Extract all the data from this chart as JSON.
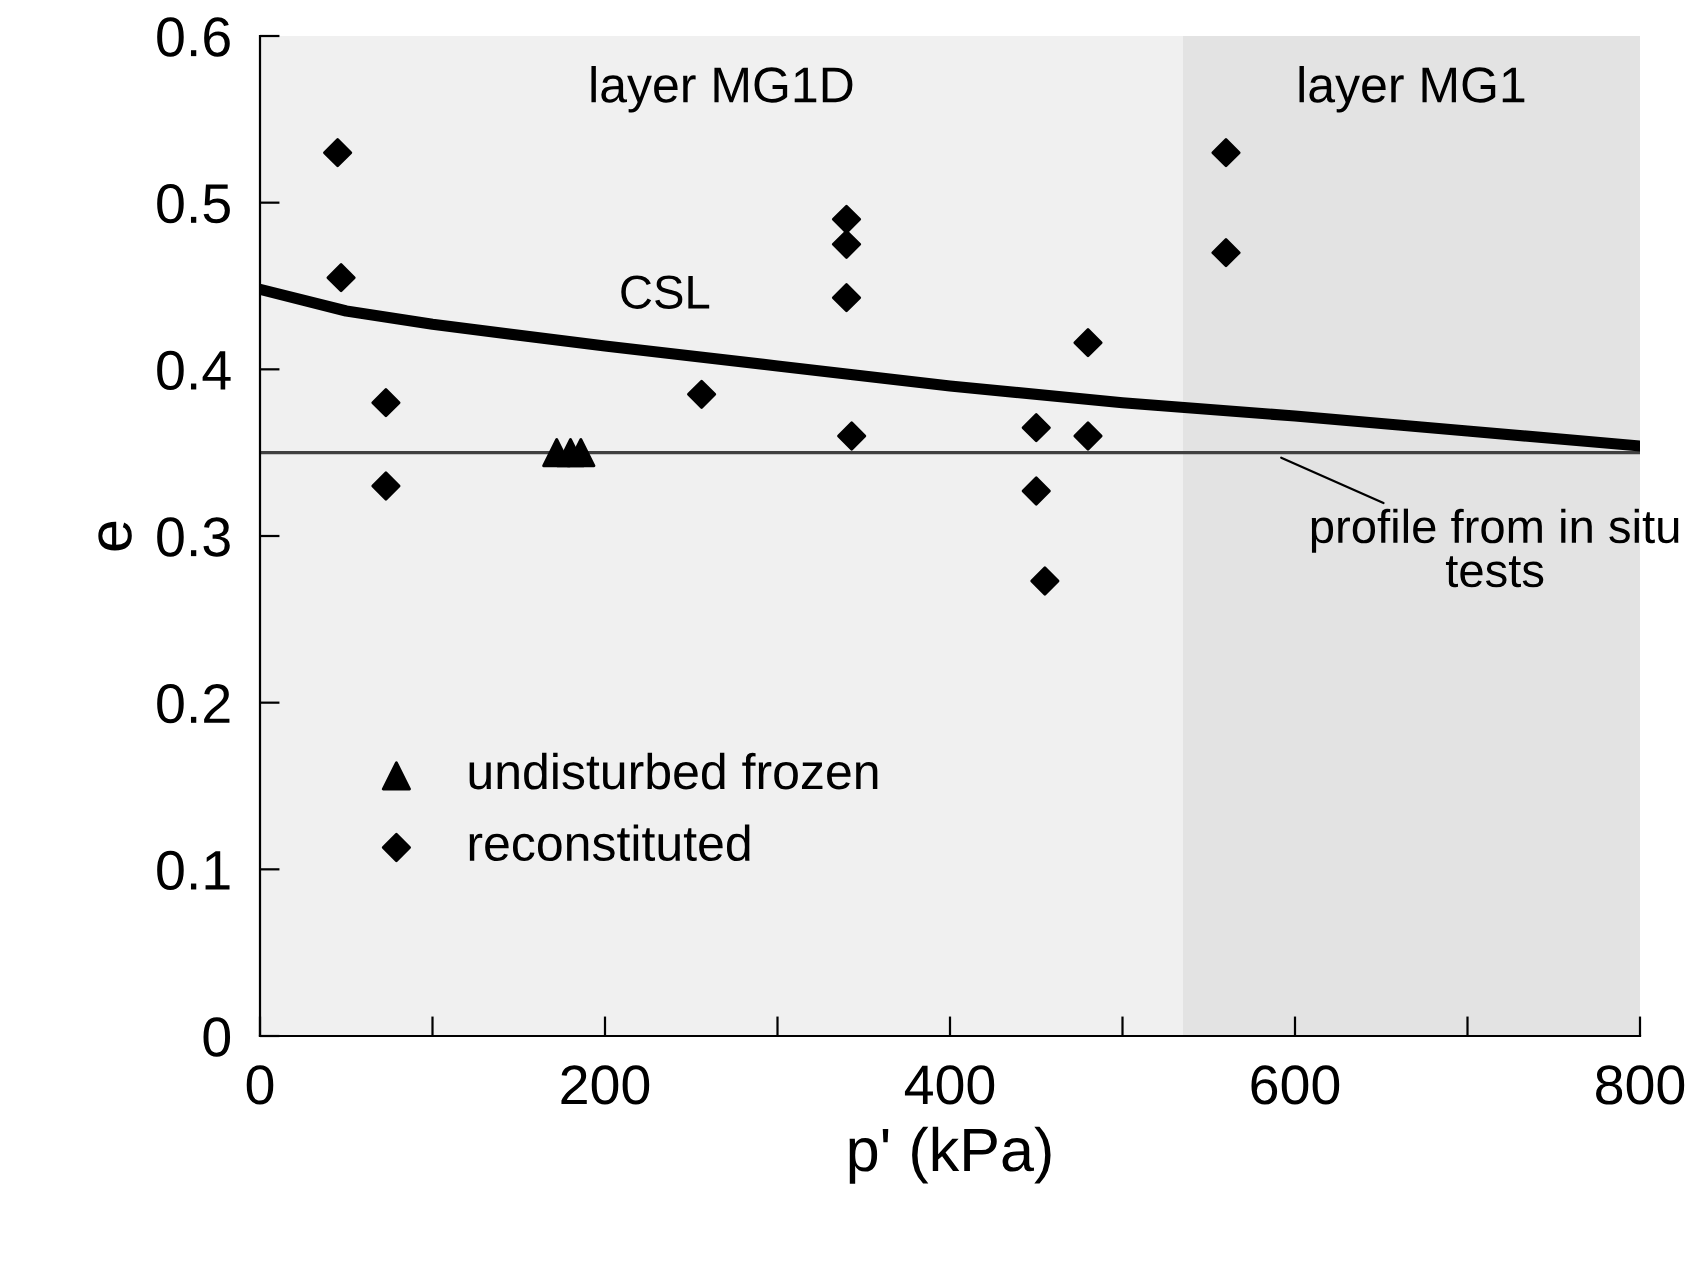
{
  "chart_data": {
    "type": "scatter",
    "xlabel": "p' (kPa)",
    "ylabel": "e",
    "xlim": [
      0,
      800
    ],
    "ylim": [
      0,
      0.6
    ],
    "xticks": [
      0,
      {
        "value": 100,
        "label": null
      },
      200,
      {
        "value": 300,
        "label": null
      },
      400,
      {
        "value": 500,
        "label": null
      },
      600,
      {
        "value": 700,
        "label": null
      },
      800
    ],
    "yticks": [
      0,
      0.1,
      0.2,
      0.3,
      0.4,
      0.5,
      0.6
    ],
    "grid": false,
    "legend": "bottom left",
    "series": [
      {
        "name": "undisturbed frozen",
        "marker": "triangle",
        "color": "#000000",
        "x": [
          172,
          180,
          186
        ],
        "values": [
          0.35,
          0.35,
          0.35
        ]
      },
      {
        "name": "reconstituted",
        "marker": "diamond",
        "color": "#000000",
        "x": [
          45,
          47,
          73,
          73,
          256,
          340,
          340,
          340,
          343,
          450,
          450,
          455,
          480,
          480,
          560,
          560
        ],
        "values": [
          0.53,
          0.455,
          0.38,
          0.33,
          0.385,
          0.49,
          0.475,
          0.443,
          0.36,
          0.365,
          0.327,
          0.273,
          0.416,
          0.36,
          0.53,
          0.47
        ]
      },
      {
        "name": "CSL",
        "type": "line",
        "color": "#000000",
        "x": [
          0,
          50,
          100,
          200,
          300,
          400,
          500,
          600,
          700,
          800
        ],
        "values": [
          0.448,
          0.435,
          0.427,
          0.414,
          0.402,
          0.39,
          0.38,
          0.372,
          0.363,
          0.354
        ]
      }
    ],
    "ref_lines": [
      {
        "axis": "y",
        "value": 0.35,
        "label": "profile from in situ tests",
        "color": "#404040"
      }
    ],
    "bands": [
      {
        "axis": "x",
        "from": 0,
        "to": 535,
        "label": "layer MG1D",
        "color": "#f0f0f0"
      },
      {
        "axis": "x",
        "from": 535,
        "to": 800,
        "label": "layer MG1",
        "color": "#e3e3e3"
      }
    ]
  }
}
